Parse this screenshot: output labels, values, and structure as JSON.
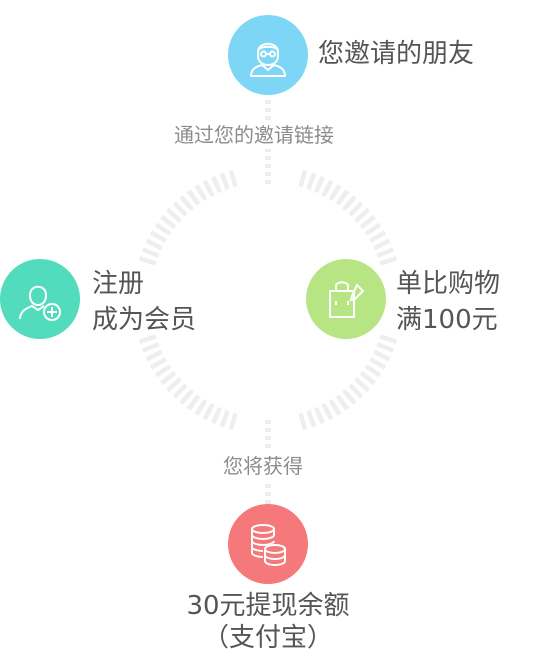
{
  "colors": {
    "friend": "#7dd6f6",
    "register": "#52dbbd",
    "shopping": "#b7e583",
    "reward": "#f5787a",
    "ring_tick": "#eeeeee",
    "text": "#555555",
    "caption": "#8c8c8c"
  },
  "steps": {
    "friend": {
      "icon": "person-glasses-icon",
      "label": "您邀请的朋友"
    },
    "via_link": {
      "label": "通过您的邀请链接"
    },
    "register": {
      "icon": "add-user-icon",
      "line1": "注册",
      "line2": "成为会员"
    },
    "shopping": {
      "icon": "shopping-bag-icon",
      "line1": "单比购物",
      "line2": "满100元"
    },
    "you_get": {
      "label": "您将获得"
    },
    "reward": {
      "icon": "coins-icon",
      "line1": "30元提现余额",
      "line2": "（支付宝）"
    }
  }
}
